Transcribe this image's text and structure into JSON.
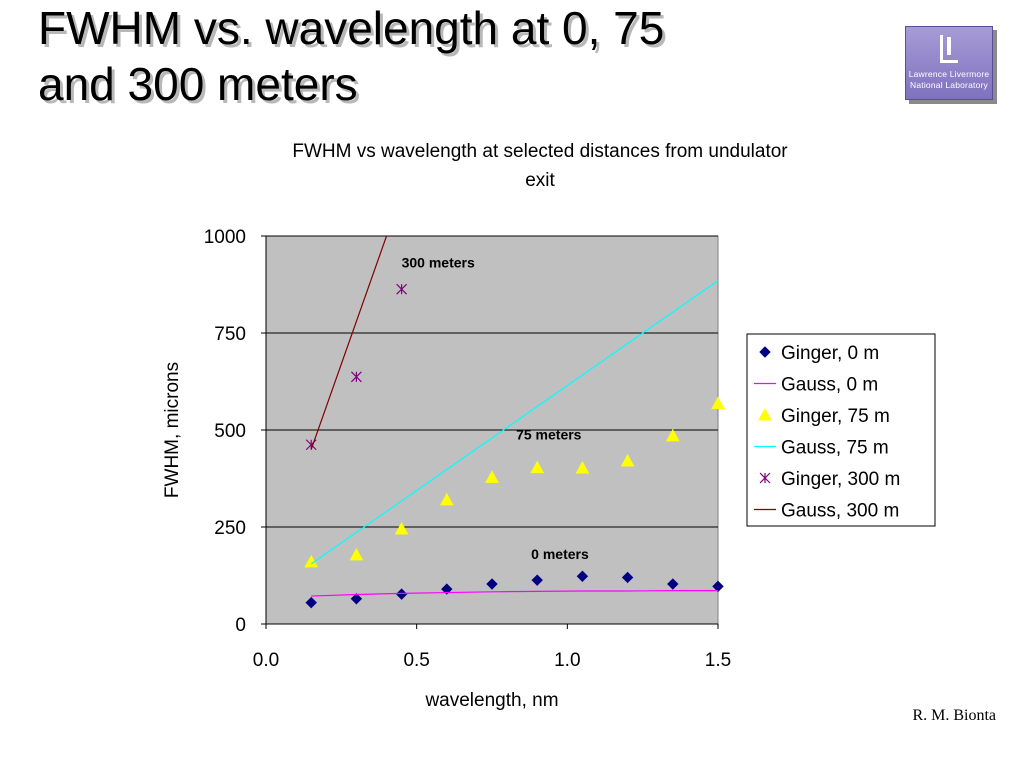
{
  "slide": {
    "title_line1": "FWHM vs. wavelength at 0, 75",
    "title_line2": "and 300 meters",
    "author": "R. M. Bionta"
  },
  "logo": {
    "line1": "Lawrence Livermore",
    "line2": "National Laboratory",
    "icon": "llnl-logo-icon"
  },
  "chart_data": {
    "type": "scatter",
    "title_line1": "FWHM vs wavelength at selected distances from undulator",
    "title_line2": "exit",
    "xlabel": "wavelength, nm",
    "ylabel": "FWHM, microns",
    "xlim": [
      0,
      1.5
    ],
    "ylim": [
      0,
      1000
    ],
    "xticks": [
      "0.0",
      "0.5",
      "1.0",
      "1.5"
    ],
    "xtick_values": [
      0,
      0.5,
      1.0,
      1.5
    ],
    "yticks": [
      "0",
      "250",
      "500",
      "750",
      "1000"
    ],
    "ytick_values": [
      0,
      250,
      500,
      750,
      1000
    ],
    "grid": "horizontal",
    "plot_background": "#c0c0c0",
    "legend_position": "right",
    "series": [
      {
        "name": "Ginger, 0 m",
        "kind": "markers",
        "marker": "diamond",
        "color": "#000080",
        "x": [
          0.15,
          0.3,
          0.45,
          0.6,
          0.75,
          0.9,
          1.05,
          1.2,
          1.35,
          1.5
        ],
        "y": [
          55,
          65,
          77,
          90,
          103,
          113,
          123,
          120,
          103,
          97
        ]
      },
      {
        "name": "Gauss, 0 m",
        "kind": "line",
        "color": "#ff00ff",
        "x": [
          0.15,
          0.3,
          0.45,
          0.6,
          0.75,
          0.9,
          1.05,
          1.2,
          1.35,
          1.5
        ],
        "y": [
          72,
          76,
          79,
          81,
          83,
          84,
          85,
          85,
          86,
          86
        ]
      },
      {
        "name": "Ginger, 75 m",
        "kind": "markers",
        "marker": "triangle",
        "color": "#ffff00",
        "x": [
          0.15,
          0.3,
          0.45,
          0.6,
          0.75,
          0.9,
          1.05,
          1.2,
          1.35,
          1.5
        ],
        "y": [
          160,
          178,
          245,
          320,
          378,
          403,
          402,
          420,
          485,
          568
        ]
      },
      {
        "name": "Gauss, 75 m",
        "kind": "line",
        "color": "#00ffff",
        "x": [
          0.15,
          1.5
        ],
        "y": [
          155,
          885
        ]
      },
      {
        "name": "Ginger, 300 m",
        "kind": "markers",
        "marker": "star",
        "color": "#800080",
        "x": [
          0.15,
          0.3,
          0.45
        ],
        "y": [
          462,
          637,
          863
        ]
      },
      {
        "name": "Gauss, 300 m",
        "kind": "line",
        "color": "#800000",
        "x": [
          0.15,
          0.4
        ],
        "y": [
          450,
          1000
        ]
      }
    ],
    "annotations": [
      {
        "text": "300 meters",
        "x": 0.45,
        "y": 932
      },
      {
        "text": "75 meters",
        "x": 0.83,
        "y": 488
      },
      {
        "text": "0 meters",
        "x": 0.88,
        "y": 180
      }
    ]
  }
}
